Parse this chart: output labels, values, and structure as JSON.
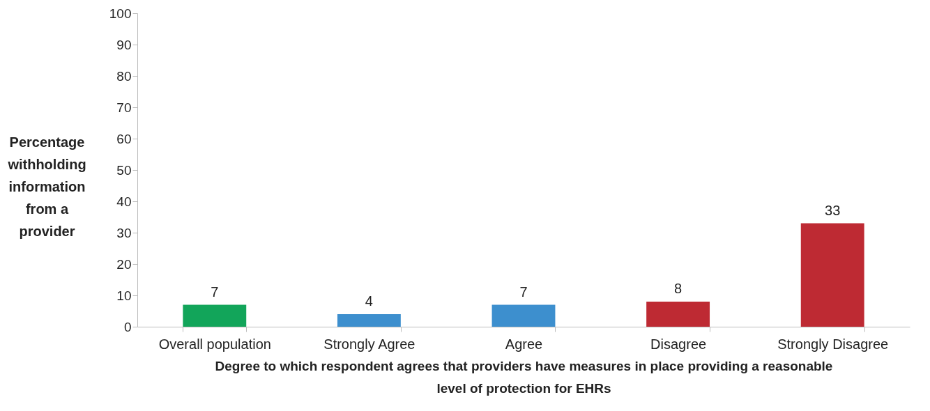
{
  "chart_data": {
    "type": "bar",
    "categories": [
      "Overall population",
      "Strongly Agree",
      "Agree",
      "Disagree",
      "Strongly Disagree"
    ],
    "values": [
      7,
      4,
      7,
      8,
      33
    ],
    "colors": [
      "#12a55a",
      "#3d8fce",
      "#3d8fce",
      "#be2a33",
      "#be2a33"
    ],
    "xlabel": "Degree to which respondent agrees that providers have measures in place providing a reasonable level of protection for EHRs",
    "ylabel": "Percentage withholding information from a provider",
    "ylim": [
      0,
      100
    ],
    "yticks": [
      0,
      10,
      20,
      30,
      40,
      50,
      60,
      70,
      80,
      90,
      100
    ],
    "data_labels": true,
    "grid": false
  }
}
